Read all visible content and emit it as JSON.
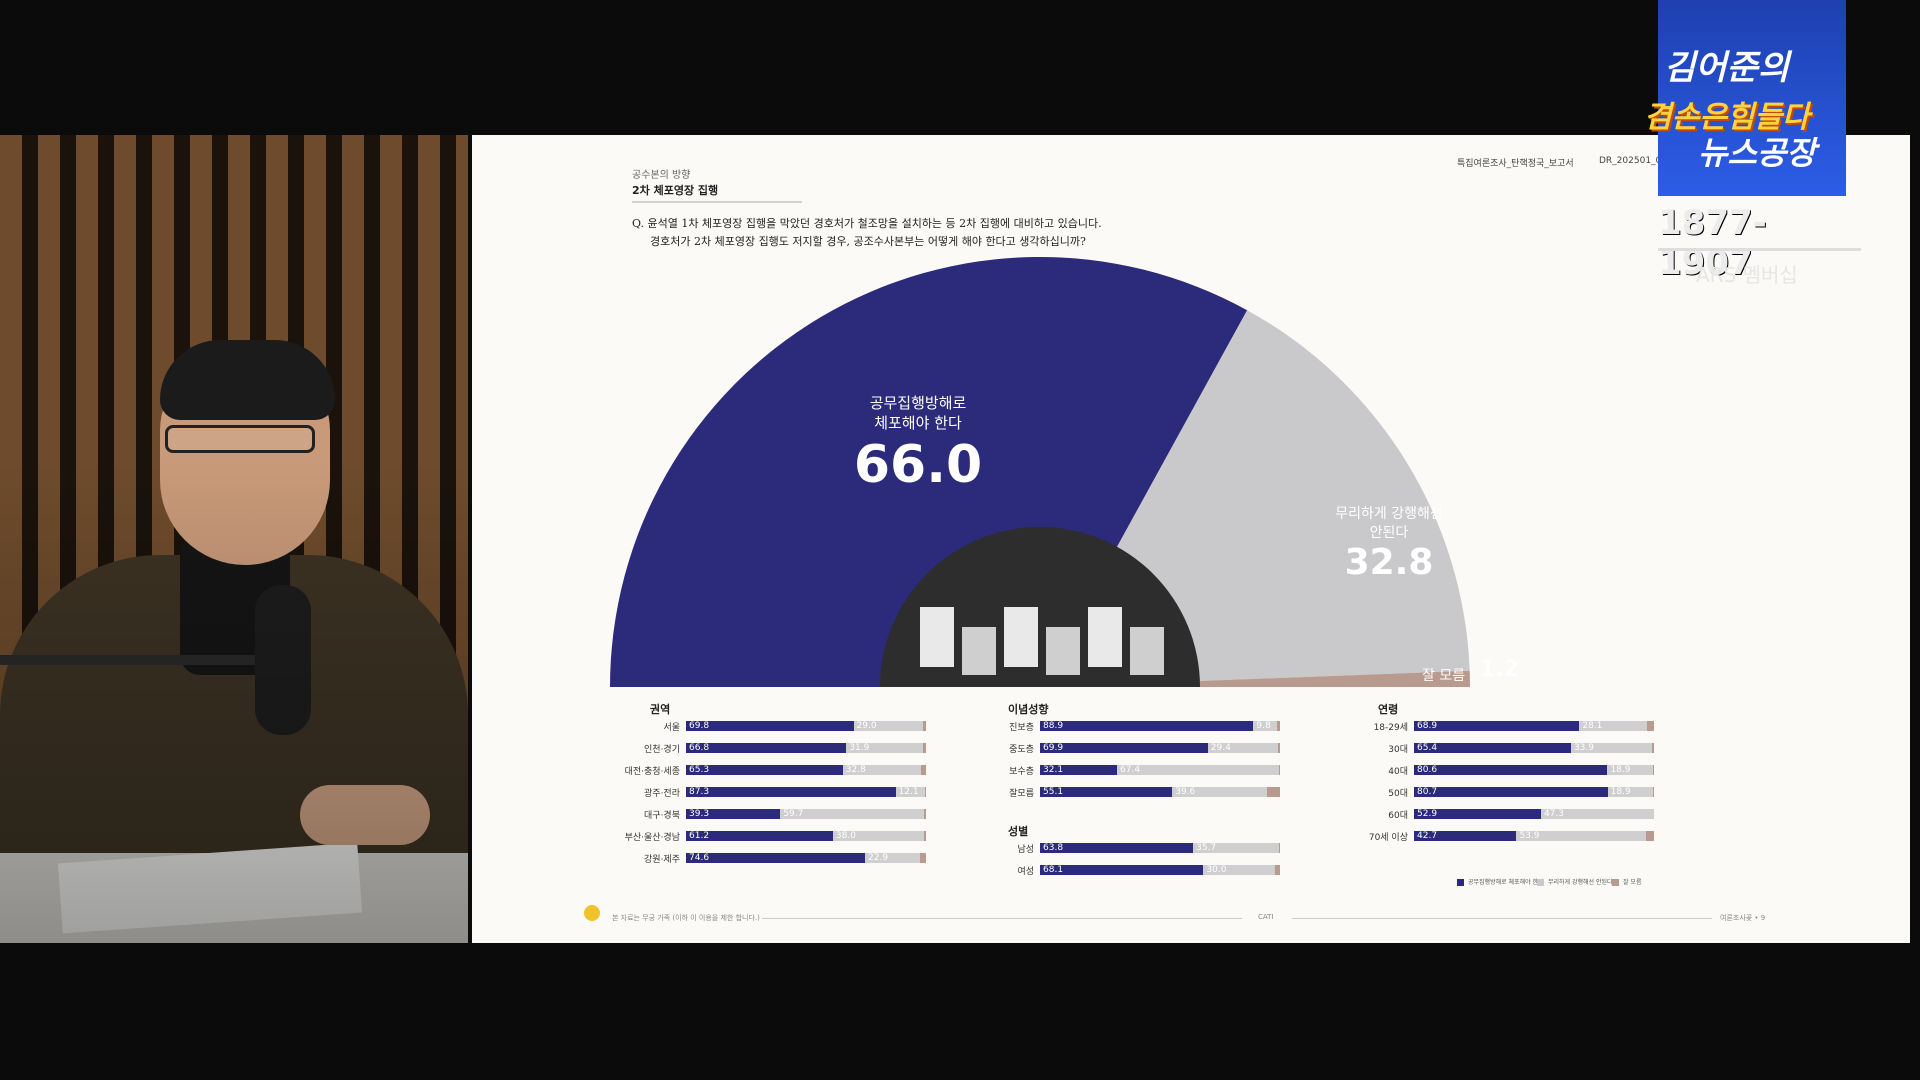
{
  "brand": {
    "line1": "김어준의",
    "line2": "겸손은힘들다",
    "line3": "뉴스공장",
    "years": "1877-1907",
    "membership": "ARS 멤버십"
  },
  "slide": {
    "breadcrumb": "공수본의 방향",
    "page_title": "2차 체포영장 집행",
    "doc_name": "특집여론조사_탄핵정국_보고서",
    "doc_id": "DR_202501_0",
    "question_line1": "Q. 윤석열 1차 체포영장 집행을 막았던 경호처가 철조망을 설치하는 등 2차 집행에 대비하고 있습니다.",
    "question_line2": "경호처가 2차 체포영장 집행도 저지할 경우, 공조수사본부는 어떻게 해야 한다고 생각하십니까?",
    "footer_note": "본 자료는 무궁 가족 (이하 이 이용을 제한 합니다.)",
    "footer_center": "CATI",
    "footer_right": "여론조사꽃 • 9"
  },
  "chart_data": [
    {
      "type": "pie",
      "shape": "semicircle",
      "slices": [
        {
          "label": "공무집행방해로 체포해야 한다",
          "label_line1": "공무집행방해로",
          "label_line2": "체포해야 한다",
          "value": 66.0,
          "display": "66.0",
          "color": "#2b2a7b"
        },
        {
          "label": "무리하게 강행해선 안된다",
          "label_line1": "무리하게 강행해선",
          "label_line2": "안된다",
          "value": 32.8,
          "display": "32.8",
          "color": "#c9c8cb"
        },
        {
          "label": "잘 모름",
          "value": 1.2,
          "display": "1.2",
          "color": "#b89a8f"
        }
      ]
    },
    {
      "type": "bar",
      "title": "권역",
      "stacked": true,
      "categories": [
        "서울",
        "인천·경기",
        "대전·충청·세종",
        "광주·전라",
        "대구·경북",
        "부산·울산·경남",
        "강원·제주"
      ],
      "series": [
        {
          "values": [
            69.8,
            66.8,
            65.3,
            87.3,
            39.3,
            61.2,
            74.6
          ]
        },
        {
          "values": [
            29.0,
            31.9,
            32.8,
            12.1,
            59.7,
            38.0,
            22.9
          ]
        },
        {
          "values": [
            1.2,
            1.3,
            1.9,
            0.6,
            1.0,
            0.8,
            2.5
          ]
        }
      ]
    },
    {
      "type": "bar",
      "title": "이념성향",
      "stacked": true,
      "categories": [
        "진보층",
        "중도층",
        "보수층",
        "잘모름"
      ],
      "series": [
        {
          "values": [
            88.9,
            69.9,
            32.1,
            55.1
          ]
        },
        {
          "values": [
            9.8,
            29.4,
            67.4,
            39.6
          ]
        },
        {
          "values": [
            1.3,
            0.7,
            0.5,
            5.3
          ]
        }
      ]
    },
    {
      "type": "bar",
      "title": "성별",
      "stacked": true,
      "categories": [
        "남성",
        "여성"
      ],
      "series": [
        {
          "values": [
            63.8,
            68.1
          ]
        },
        {
          "values": [
            35.7,
            30.0
          ]
        },
        {
          "values": [
            0.5,
            1.9
          ]
        }
      ]
    },
    {
      "type": "bar",
      "title": "연령",
      "stacked": true,
      "categories": [
        "18-29세",
        "30대",
        "40대",
        "50대",
        "60대",
        "70세 이상"
      ],
      "series": [
        {
          "values": [
            68.9,
            65.4,
            80.6,
            80.7,
            52.9,
            42.7
          ]
        },
        {
          "values": [
            28.1,
            33.9,
            18.9,
            18.9,
            47.3,
            53.9
          ]
        },
        {
          "values": [
            3.0,
            0.7,
            0.5,
            0.4,
            0.0,
            3.4
          ]
        }
      ]
    }
  ],
  "legend": {
    "item1": "공무집행방해로 체포해야 한다",
    "item2": "무리하게 강행해선 안된다",
    "item3": "잘 모름"
  },
  "colors": {
    "navy": "#2b2a7b",
    "gray": "#d0cfcf",
    "brown": "#b89a8f"
  }
}
